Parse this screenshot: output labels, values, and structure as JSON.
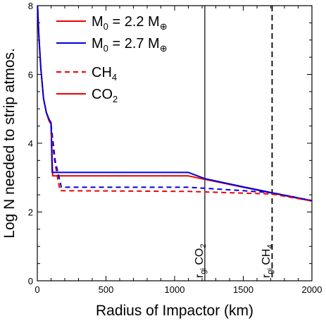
{
  "chart_data": {
    "type": "line",
    "xlabel": "Radius of Impactor (km)",
    "ylabel": "Log N needed to strip atmos.",
    "xlim": [
      0,
      2000
    ],
    "ylim": [
      0,
      8
    ],
    "xticks": [
      0,
      500,
      1000,
      1500,
      2000
    ],
    "yticks": [
      0,
      2,
      4,
      6,
      8
    ],
    "grid": false,
    "legend_position": "top-left",
    "legend": {
      "m1": {
        "main": "M",
        "sub": "0",
        "rest": " = 2.2 M",
        "symbol": "⊕"
      },
      "m2": {
        "main": "M",
        "sub": "0",
        "rest": " = 2.7 M",
        "symbol": "⊕"
      },
      "ch4": {
        "main": "CH",
        "sub": "4"
      },
      "co2": {
        "main": "CO",
        "sub": "2"
      }
    },
    "vertical_lines": [
      {
        "x": 1220,
        "style": "solid",
        "label_main": "r",
        "label_sub": "gi",
        "label_species": " CO",
        "label_species_sub": "2"
      },
      {
        "x": 1710,
        "style": "dashed",
        "label_main": "r",
        "label_sub": "gi",
        "label_species": " CH",
        "label_species_sub": "4"
      }
    ],
    "series": [
      {
        "key": "m22_co2",
        "color": "#ee0000",
        "dash": "solid",
        "points": [
          [
            0,
            8.2
          ],
          [
            10,
            7.2
          ],
          [
            25,
            6.2
          ],
          [
            45,
            5.3
          ],
          [
            65,
            4.9
          ],
          [
            85,
            4.65
          ],
          [
            100,
            4.55
          ],
          [
            112,
            3.05
          ],
          [
            1100,
            3.05
          ],
          [
            1220,
            2.95
          ],
          [
            1500,
            2.72
          ],
          [
            1710,
            2.55
          ],
          [
            2000,
            2.32
          ]
        ]
      },
      {
        "key": "m27_co2",
        "color": "#0000dd",
        "dash": "solid",
        "points": [
          [
            0,
            8.2
          ],
          [
            10,
            7.2
          ],
          [
            25,
            6.2
          ],
          [
            45,
            5.3
          ],
          [
            65,
            4.9
          ],
          [
            85,
            4.7
          ],
          [
            100,
            4.6
          ],
          [
            108,
            3.15
          ],
          [
            1100,
            3.15
          ],
          [
            1220,
            2.97
          ],
          [
            1500,
            2.73
          ],
          [
            1710,
            2.56
          ],
          [
            2000,
            2.33
          ]
        ]
      },
      {
        "key": "m22_ch4",
        "color": "#ee0000",
        "dash": "dashed",
        "points": [
          [
            100,
            4.3
          ],
          [
            130,
            3.4
          ],
          [
            165,
            2.62
          ],
          [
            1100,
            2.6
          ],
          [
            1500,
            2.55
          ],
          [
            1710,
            2.52
          ],
          [
            2000,
            2.32
          ]
        ]
      },
      {
        "key": "m27_ch4",
        "color": "#0000dd",
        "dash": "dashed",
        "points": [
          [
            100,
            4.55
          ],
          [
            130,
            3.5
          ],
          [
            175,
            2.72
          ],
          [
            1100,
            2.72
          ],
          [
            1500,
            2.62
          ],
          [
            1710,
            2.56
          ],
          [
            2000,
            2.33
          ]
        ]
      }
    ],
    "colors": {
      "red": "#ee0000",
      "blue": "#0000dd",
      "axis": "#000000"
    }
  }
}
